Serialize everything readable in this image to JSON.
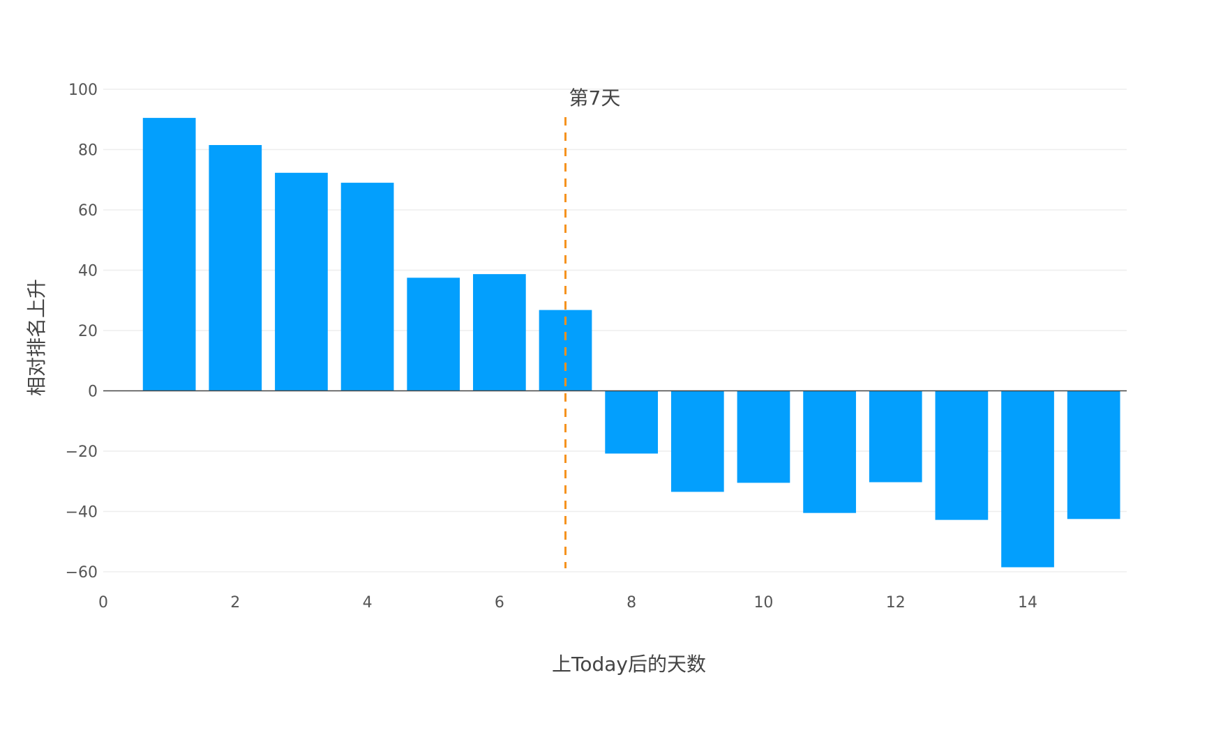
{
  "chart_data": {
    "type": "bar",
    "x": [
      1,
      2,
      3,
      4,
      5,
      6,
      7,
      8,
      9,
      10,
      11,
      12,
      13,
      14,
      15
    ],
    "values": [
      90.5,
      81.5,
      72.3,
      69,
      37.5,
      38.7,
      26.8,
      -20.8,
      -33.5,
      -30.5,
      -40.5,
      -30.3,
      -42.8,
      -58.5,
      -42.5
    ],
    "xlabel": "上Today后的天数",
    "ylabel": "相对排名上升",
    "xlim": [
      0,
      15.5
    ],
    "ylim": [
      -60,
      100
    ],
    "xticks": [
      0,
      2,
      4,
      6,
      8,
      10,
      12,
      14
    ],
    "yticks": [
      100,
      80,
      60,
      40,
      20,
      0,
      -20,
      -40,
      -60
    ],
    "ytick_labels": [
      "100",
      "80",
      "60",
      "40",
      "20",
      "0",
      "−20",
      "−40",
      "−60"
    ],
    "grid": true,
    "bar_color": "#039ffd",
    "reference_line": {
      "x": 7,
      "color": "#f5921e",
      "style": "dashed",
      "label": "第7天"
    }
  }
}
